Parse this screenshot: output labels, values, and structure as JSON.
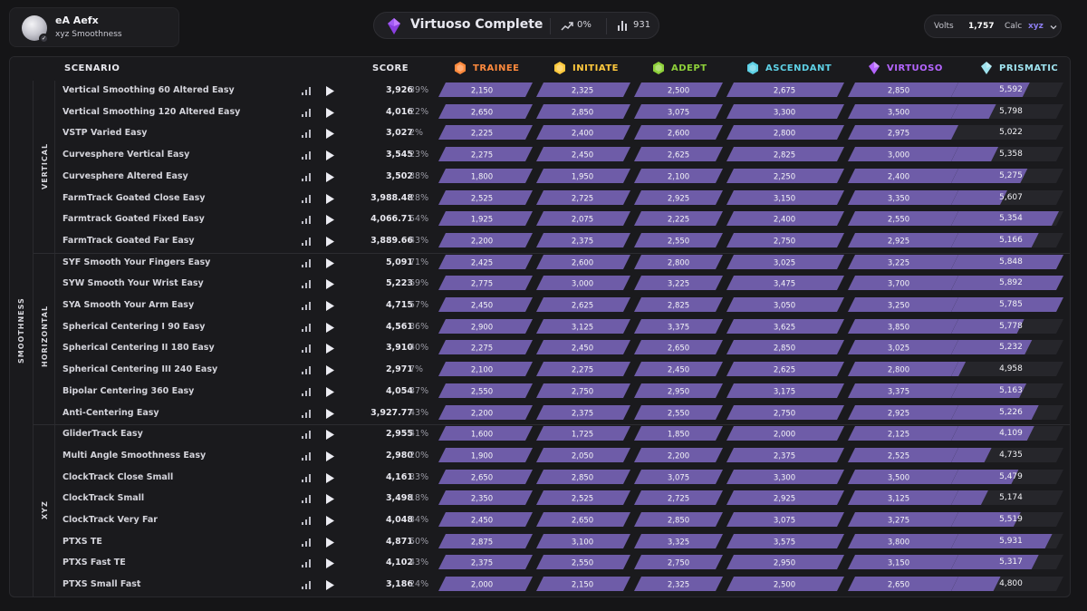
{
  "profile": {
    "name": "eA Aefx",
    "subtitle": "xyz Smoothness",
    "avatar_icon": "avatar-image",
    "badge_icon": "check-badge-icon"
  },
  "rank": {
    "title": "Virtuoso Complete",
    "icon": "virtuoso-gem-icon",
    "trend": "0%",
    "count": "931"
  },
  "settings": {
    "volts_label": "Volts",
    "volts_value": "1,757",
    "calc_label": "Calc",
    "calc_value": "xyz"
  },
  "headers": {
    "scenario": "SCENARIO",
    "score": "SCORE",
    "ranks": [
      {
        "label": "TRAINEE",
        "color": "#ff8a3d",
        "icon": "trainee-gem-icon"
      },
      {
        "label": "INITIATE",
        "color": "#ffc93d",
        "icon": "initiate-gem-icon"
      },
      {
        "label": "ADEPT",
        "color": "#8ed03a",
        "icon": "adept-gem-icon"
      },
      {
        "label": "ASCENDANT",
        "color": "#5ed1e6",
        "icon": "ascendant-gem-icon"
      },
      {
        "label": "VIRTUOSO",
        "color": "#b565ff",
        "icon": "virtuoso-gem-icon"
      },
      {
        "label": "PRISMATIC",
        "color": "#9fe3ef",
        "icon": "prismatic-gem-icon"
      }
    ]
  },
  "category": "SMOOTHNESS",
  "sections": [
    {
      "label": "VERTICAL",
      "rows": [
        {
          "name": "Vertical Smoothing 60 Altered Easy",
          "score": "3,926",
          "pct": "39%",
          "thresholds": [
            "2,150",
            "2,325",
            "2,500",
            "2,675",
            "2,850",
            "5,592"
          ],
          "prism_fill": 0.7
        },
        {
          "name": "Vertical Smoothing 120 Altered Easy",
          "score": "4,016",
          "pct": "22%",
          "thresholds": [
            "2,650",
            "2,850",
            "3,075",
            "3,300",
            "3,500",
            "5,798"
          ],
          "prism_fill": 0.4
        },
        {
          "name": "VSTP Varied Easy",
          "score": "3,027",
          "pct": "2%",
          "thresholds": [
            "2,225",
            "2,400",
            "2,600",
            "2,800",
            "2,975",
            "5,022"
          ],
          "prism_fill": 0.04
        },
        {
          "name": "Curvesphere Vertical Easy",
          "score": "3,545",
          "pct": "23%",
          "thresholds": [
            "2,275",
            "2,450",
            "2,625",
            "2,825",
            "3,000",
            "5,358"
          ],
          "prism_fill": 0.42
        },
        {
          "name": "Curvesphere Altered Easy",
          "score": "3,502",
          "pct": "38%",
          "thresholds": [
            "1,800",
            "1,950",
            "2,100",
            "2,250",
            "2,400",
            "5,275"
          ],
          "prism_fill": 0.68
        },
        {
          "name": "FarmTrack Goated Close Easy",
          "score": "3,988.48",
          "pct": "28%",
          "thresholds": [
            "2,525",
            "2,725",
            "2,925",
            "3,150",
            "3,350",
            "5,607"
          ],
          "prism_fill": 0.5
        },
        {
          "name": "Farmtrack Goated Fixed Easy",
          "score": "4,066.71",
          "pct": "54%",
          "thresholds": [
            "1,925",
            "2,075",
            "2,225",
            "2,400",
            "2,550",
            "5,354"
          ],
          "prism_fill": 0.96
        },
        {
          "name": "FarmTrack Goated Far Easy",
          "score": "3,889.66",
          "pct": "43%",
          "thresholds": [
            "2,200",
            "2,375",
            "2,550",
            "2,750",
            "2,925",
            "5,166"
          ],
          "prism_fill": 0.78
        }
      ]
    },
    {
      "label": "HORIZONTAL",
      "rows": [
        {
          "name": "SYF Smooth Your Fingers Easy",
          "score": "5,091",
          "pct": "71%",
          "thresholds": [
            "2,425",
            "2,600",
            "2,800",
            "3,025",
            "3,225",
            "5,848"
          ],
          "prism_fill": 1.0
        },
        {
          "name": "SYW Smooth Your Wrist Easy",
          "score": "5,223",
          "pct": "69%",
          "thresholds": [
            "2,775",
            "3,000",
            "3,225",
            "3,475",
            "3,700",
            "5,892"
          ],
          "prism_fill": 1.0
        },
        {
          "name": "SYA Smooth Your Arm Easy",
          "score": "4,715",
          "pct": "57%",
          "thresholds": [
            "2,450",
            "2,625",
            "2,825",
            "3,050",
            "3,250",
            "5,785"
          ],
          "prism_fill": 1.0
        },
        {
          "name": "Spherical Centering I 90 Easy",
          "score": "4,561",
          "pct": "36%",
          "thresholds": [
            "2,900",
            "3,125",
            "3,375",
            "3,625",
            "3,850",
            "5,778"
          ],
          "prism_fill": 0.65
        },
        {
          "name": "Spherical Centering II 180 Easy",
          "score": "3,910",
          "pct": "40%",
          "thresholds": [
            "2,275",
            "2,450",
            "2,650",
            "2,850",
            "3,025",
            "5,232"
          ],
          "prism_fill": 0.72
        },
        {
          "name": "Spherical Centering III 240 Easy",
          "score": "2,971",
          "pct": "7%",
          "thresholds": [
            "2,100",
            "2,275",
            "2,450",
            "2,625",
            "2,800",
            "4,958"
          ],
          "prism_fill": 0.13
        },
        {
          "name": "Bipolar Centering 360 Easy",
          "score": "4,054",
          "pct": "37%",
          "thresholds": [
            "2,550",
            "2,750",
            "2,950",
            "3,175",
            "3,375",
            "5,163"
          ],
          "prism_fill": 0.67
        },
        {
          "name": "Anti-Centering Easy",
          "score": "3,927.77",
          "pct": "43%",
          "thresholds": [
            "2,200",
            "2,375",
            "2,550",
            "2,750",
            "2,925",
            "5,226"
          ],
          "prism_fill": 0.78
        }
      ]
    },
    {
      "label": "XYZ",
      "rows": [
        {
          "name": "GliderTrack Easy",
          "score": "2,955",
          "pct": "41%",
          "thresholds": [
            "1,600",
            "1,725",
            "1,850",
            "2,000",
            "2,125",
            "4,109"
          ],
          "prism_fill": 0.74
        },
        {
          "name": "Multi Angle Smoothness Easy",
          "score": "2,980",
          "pct": "20%",
          "thresholds": [
            "1,900",
            "2,050",
            "2,200",
            "2,375",
            "2,525",
            "4,735"
          ],
          "prism_fill": 0.36
        },
        {
          "name": "ClockTrack Close Small",
          "score": "4,161",
          "pct": "33%",
          "thresholds": [
            "2,650",
            "2,850",
            "3,075",
            "3,300",
            "3,500",
            "5,479"
          ],
          "prism_fill": 0.6
        },
        {
          "name": "ClockTrack Small",
          "score": "3,498",
          "pct": "18%",
          "thresholds": [
            "2,350",
            "2,525",
            "2,725",
            "2,925",
            "3,125",
            "5,174"
          ],
          "prism_fill": 0.33
        },
        {
          "name": "ClockTrack Very Far",
          "score": "4,048",
          "pct": "34%",
          "thresholds": [
            "2,450",
            "2,650",
            "2,850",
            "3,075",
            "3,275",
            "5,519"
          ],
          "prism_fill": 0.62
        },
        {
          "name": "PTXS TE",
          "score": "4,871",
          "pct": "50%",
          "thresholds": [
            "2,875",
            "3,100",
            "3,325",
            "3,575",
            "3,800",
            "5,931"
          ],
          "prism_fill": 0.9
        },
        {
          "name": "PTXS Fast TE",
          "score": "4,102",
          "pct": "43%",
          "thresholds": [
            "2,375",
            "2,550",
            "2,750",
            "2,950",
            "3,150",
            "5,317"
          ],
          "prism_fill": 0.78
        },
        {
          "name": "PTXS Small Fast",
          "score": "3,186",
          "pct": "24%",
          "thresholds": [
            "2,000",
            "2,150",
            "2,325",
            "2,500",
            "2,650",
            "4,800"
          ],
          "prism_fill": 0.44
        }
      ]
    }
  ],
  "colors": {
    "bar_fill": "#6e5ca8",
    "bar_track": "#26262b",
    "accent": "#8c7df0"
  }
}
